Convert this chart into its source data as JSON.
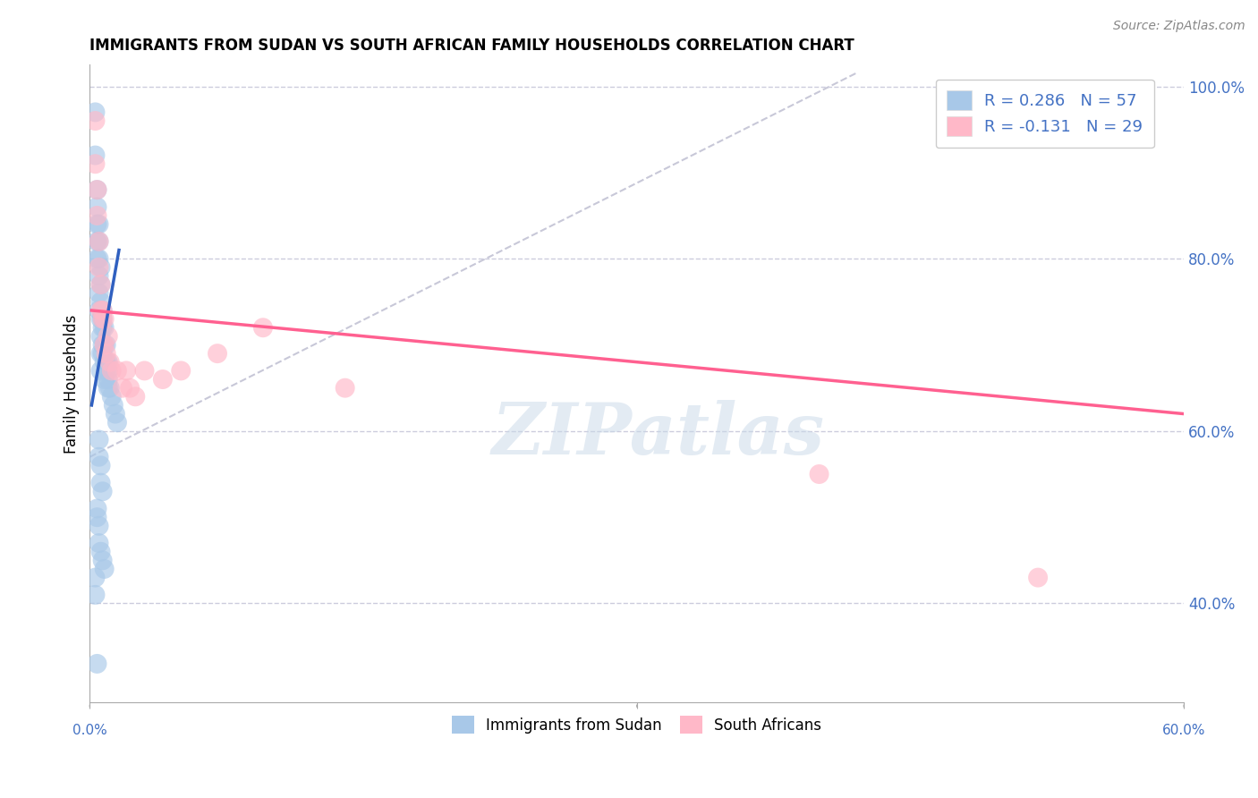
{
  "title": "IMMIGRANTS FROM SUDAN VS SOUTH AFRICAN FAMILY HOUSEHOLDS CORRELATION CHART",
  "source": "Source: ZipAtlas.com",
  "ylabel": "Family Households",
  "xlim": [
    0.0,
    0.6
  ],
  "ylim": [
    0.285,
    1.025
  ],
  "yticks": [
    0.4,
    0.6,
    0.8,
    1.0
  ],
  "ytick_labels": [
    "40.0%",
    "60.0%",
    "80.0%",
    "100.0%"
  ],
  "color_blue": "#A8C8E8",
  "color_pink": "#FFB8C8",
  "color_blue_line": "#3060C0",
  "color_pink_line": "#FF6090",
  "color_diag_line": "#C8C8D8",
  "color_text_blue": "#4472C4",
  "watermark": "ZIPatlas",
  "background_color": "#FFFFFF",
  "grid_color": "#CCCCDD",
  "sudan_x": [
    0.003,
    0.003,
    0.004,
    0.004,
    0.004,
    0.004,
    0.004,
    0.005,
    0.005,
    0.005,
    0.005,
    0.005,
    0.005,
    0.006,
    0.006,
    0.006,
    0.006,
    0.006,
    0.006,
    0.006,
    0.007,
    0.007,
    0.007,
    0.007,
    0.007,
    0.008,
    0.008,
    0.008,
    0.008,
    0.009,
    0.009,
    0.009,
    0.01,
    0.01,
    0.01,
    0.01,
    0.011,
    0.012,
    0.013,
    0.014,
    0.015,
    0.005,
    0.005,
    0.006,
    0.006,
    0.007,
    0.004,
    0.004,
    0.005,
    0.005,
    0.006,
    0.007,
    0.008,
    0.003,
    0.003,
    0.004
  ],
  "sudan_y": [
    0.97,
    0.92,
    0.88,
    0.86,
    0.84,
    0.82,
    0.8,
    0.84,
    0.82,
    0.8,
    0.78,
    0.76,
    0.74,
    0.79,
    0.77,
    0.75,
    0.73,
    0.71,
    0.69,
    0.67,
    0.74,
    0.73,
    0.72,
    0.7,
    0.69,
    0.72,
    0.7,
    0.68,
    0.66,
    0.7,
    0.68,
    0.67,
    0.68,
    0.67,
    0.66,
    0.65,
    0.65,
    0.64,
    0.63,
    0.62,
    0.61,
    0.59,
    0.57,
    0.56,
    0.54,
    0.53,
    0.51,
    0.5,
    0.49,
    0.47,
    0.46,
    0.45,
    0.44,
    0.43,
    0.41,
    0.33
  ],
  "sa_x": [
    0.003,
    0.003,
    0.004,
    0.004,
    0.005,
    0.005,
    0.006,
    0.006,
    0.007,
    0.007,
    0.008,
    0.008,
    0.009,
    0.01,
    0.011,
    0.012,
    0.015,
    0.018,
    0.02,
    0.022,
    0.025,
    0.03,
    0.04,
    0.05,
    0.07,
    0.095,
    0.14,
    0.4,
    0.52
  ],
  "sa_y": [
    0.96,
    0.91,
    0.88,
    0.85,
    0.82,
    0.79,
    0.77,
    0.74,
    0.74,
    0.73,
    0.73,
    0.7,
    0.69,
    0.71,
    0.68,
    0.67,
    0.67,
    0.65,
    0.67,
    0.65,
    0.64,
    0.67,
    0.66,
    0.67,
    0.69,
    0.72,
    0.65,
    0.55,
    0.43
  ],
  "blue_line_x": [
    0.001,
    0.016
  ],
  "blue_line_y": [
    0.63,
    0.81
  ],
  "pink_line_x": [
    0.001,
    0.6
  ],
  "pink_line_y": [
    0.74,
    0.62
  ]
}
